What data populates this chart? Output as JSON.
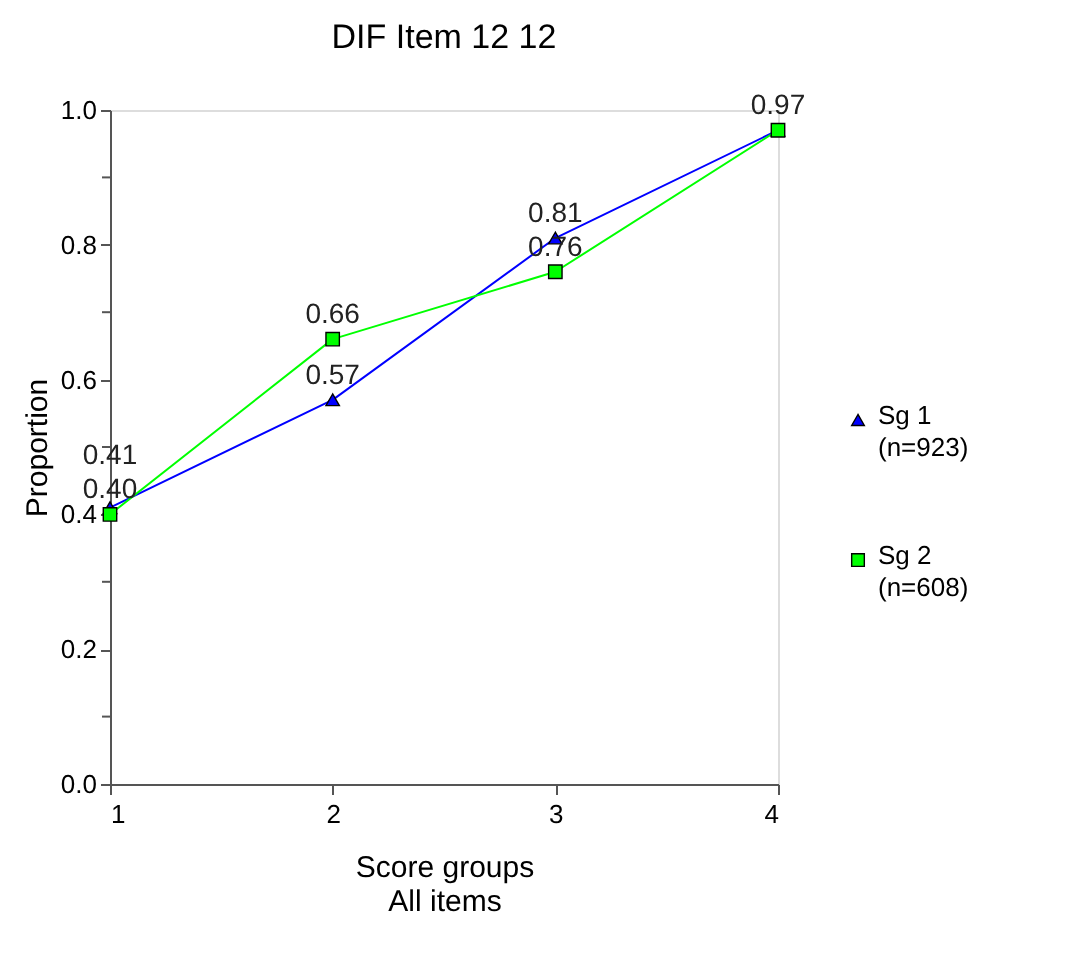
{
  "chart_data": {
    "type": "line",
    "title": "DIF   Item 12  12",
    "xlabel": "Score groups\nAll items",
    "ylabel": "Proportion",
    "x": [
      1,
      2,
      3,
      4
    ],
    "series": [
      {
        "name": "Sg 1\n(n=923)",
        "color": "#0000ff",
        "marker": "triangle",
        "values": [
          0.41,
          0.57,
          0.81,
          0.97
        ],
        "value_labels": [
          "0.41",
          "0.57",
          "0.81",
          null
        ]
      },
      {
        "name": "Sg 2\n(n=608)",
        "color": "#00ff00",
        "marker": "square",
        "values": [
          0.4,
          0.66,
          0.76,
          0.97
        ],
        "value_labels": [
          "0.40",
          "0.66",
          "0.76",
          "0.97"
        ]
      }
    ],
    "xlim": [
      1,
      4
    ],
    "xticks": [
      1,
      2,
      3,
      4
    ],
    "ylim": [
      0,
      1
    ],
    "yticks": [
      {
        "value": 0,
        "label": "0.0"
      },
      {
        "value": 0.1,
        "label": null
      },
      {
        "value": 0.2,
        "label": "0.2"
      },
      {
        "value": 0.3,
        "label": null
      },
      {
        "value": 0.4,
        "label": "0.4"
      },
      {
        "value": 0.5,
        "label": null
      },
      {
        "value": 0.6,
        "label": "0.6"
      },
      {
        "value": 0.7,
        "label": null
      },
      {
        "value": 0.8,
        "label": "0.8"
      },
      {
        "value": 0.9,
        "label": null
      },
      {
        "value": 1,
        "label": "1.0"
      }
    ],
    "grid": false,
    "legend": "right",
    "line_style": "solid"
  }
}
